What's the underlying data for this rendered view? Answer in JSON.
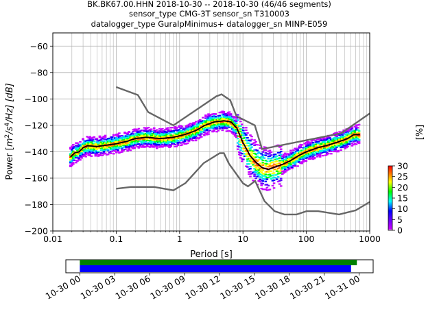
{
  "chart_data": [
    {
      "type": "heatmap",
      "title_lines": [
        "BK.BK67.00.HHN   2018-10-30 -- 2018-10-30  (46/46 segments)",
        "sensor_type CMG-3T sensor_sn T310003",
        "datalogger_type GuralpMinimus+ datalogger_sn MINP-E059"
      ],
      "xlabel": "Period [s]",
      "ylabel_parts": {
        "a": "Power [",
        "b": "m",
        "c": "2",
        "d": "/s",
        "e": "4",
        "f": "/Hz] [dB]"
      },
      "xscale": "log",
      "xlim": [
        0.01,
        1000
      ],
      "ylim": [
        -200,
        -50
      ],
      "xticks": [
        {
          "v": 0.01,
          "label": "0.01"
        },
        {
          "v": 0.1,
          "label": "0.1"
        },
        {
          "v": 1,
          "label": "1"
        },
        {
          "v": 10,
          "label": "10"
        },
        {
          "v": 100,
          "label": "100"
        },
        {
          "v": 1000,
          "label": "1000"
        }
      ],
      "yticks": [
        {
          "v": -200,
          "label": "−200"
        },
        {
          "v": -180,
          "label": "−180"
        },
        {
          "v": -160,
          "label": "−160"
        },
        {
          "v": -140,
          "label": "−140"
        },
        {
          "v": -120,
          "label": "−120"
        },
        {
          "v": -100,
          "label": "−100"
        },
        {
          "v": -80,
          "label": "−80"
        },
        {
          "v": -60,
          "label": "−60"
        }
      ],
      "grid": true,
      "noise_model_high": [
        [
          0.1,
          -91
        ],
        [
          0.22,
          -97
        ],
        [
          0.32,
          -110
        ],
        [
          0.8,
          -120
        ],
        [
          3.8,
          -98
        ],
        [
          4.6,
          -96.5
        ],
        [
          6.3,
          -101
        ],
        [
          7.9,
          -113
        ],
        [
          15.4,
          -120
        ],
        [
          20,
          -138
        ],
        [
          354.8,
          -126
        ],
        [
          1000,
          -111
        ]
      ],
      "noise_model_low": [
        [
          0.1,
          -168
        ],
        [
          0.17,
          -166.7
        ],
        [
          0.4,
          -166.7
        ],
        [
          0.8,
          -169.2
        ],
        [
          1.24,
          -163.7
        ],
        [
          2.4,
          -148.6
        ],
        [
          4.3,
          -141.1
        ],
        [
          5,
          -141.1
        ],
        [
          6,
          -149
        ],
        [
          10,
          -163.8
        ],
        [
          12,
          -166.2
        ],
        [
          15.6,
          -162.1
        ],
        [
          21.9,
          -177.5
        ],
        [
          31.6,
          -185
        ],
        [
          45,
          -187.5
        ],
        [
          70,
          -187.5
        ],
        [
          101,
          -185
        ],
        [
          154,
          -185
        ],
        [
          328,
          -187.5
        ],
        [
          600,
          -184.4
        ],
        [
          1000,
          -178
        ]
      ],
      "mode_curve": [
        [
          0.019,
          -144
        ],
        [
          0.022,
          -141
        ],
        [
          0.026,
          -140
        ],
        [
          0.03,
          -137
        ],
        [
          0.035,
          -135.5
        ],
        [
          0.05,
          -136
        ],
        [
          0.07,
          -135
        ],
        [
          0.1,
          -134
        ],
        [
          0.15,
          -132
        ],
        [
          0.2,
          -130
        ],
        [
          0.3,
          -129
        ],
        [
          0.5,
          -130
        ],
        [
          0.8,
          -129
        ],
        [
          1.2,
          -127
        ],
        [
          1.8,
          -124
        ],
        [
          2.5,
          -120
        ],
        [
          3.5,
          -117.5
        ],
        [
          5,
          -116.5
        ],
        [
          6.5,
          -117.5
        ],
        [
          8,
          -122
        ],
        [
          10,
          -133
        ],
        [
          13,
          -143
        ],
        [
          16,
          -148
        ],
        [
          20,
          -152
        ],
        [
          25,
          -153.5
        ],
        [
          30,
          -152
        ],
        [
          40,
          -150
        ],
        [
          55,
          -147
        ],
        [
          75,
          -143
        ],
        [
          100,
          -140
        ],
        [
          150,
          -137
        ],
        [
          200,
          -135.5
        ],
        [
          300,
          -133
        ],
        [
          450,
          -130
        ],
        [
          560,
          -127
        ],
        [
          700,
          -127
        ]
      ],
      "density_scatter": 7,
      "colorbar": {
        "label": "[%]",
        "range": [
          0,
          30
        ],
        "ticks": [
          "0",
          "5",
          "10",
          "15",
          "20",
          "25",
          "30"
        ],
        "colors": [
          "#ffffff",
          "#c800ff",
          "#0000ff",
          "#00ffff",
          "#00ff00",
          "#ffff00",
          "#ff8000",
          "#ff0000"
        ]
      },
      "colors": {
        "noise_models": "#666666",
        "mode": "#000000",
        "grid": "#b0b0b0"
      }
    },
    {
      "type": "timeline",
      "x_tick_labels": [
        "10-30 00",
        "10-30 03",
        "10-30 06",
        "10-30 09",
        "10-30 12",
        "10-30 15",
        "10-30 18",
        "10-30 21",
        "10-31 00"
      ],
      "x_range_hours": [
        -1.2,
        25.2
      ],
      "bars": [
        {
          "start_hours": 0,
          "end_hours": 23.8,
          "color": "#008000"
        },
        {
          "start_hours": 0,
          "end_hours": 23.3,
          "color": "#0000ff"
        }
      ]
    }
  ]
}
